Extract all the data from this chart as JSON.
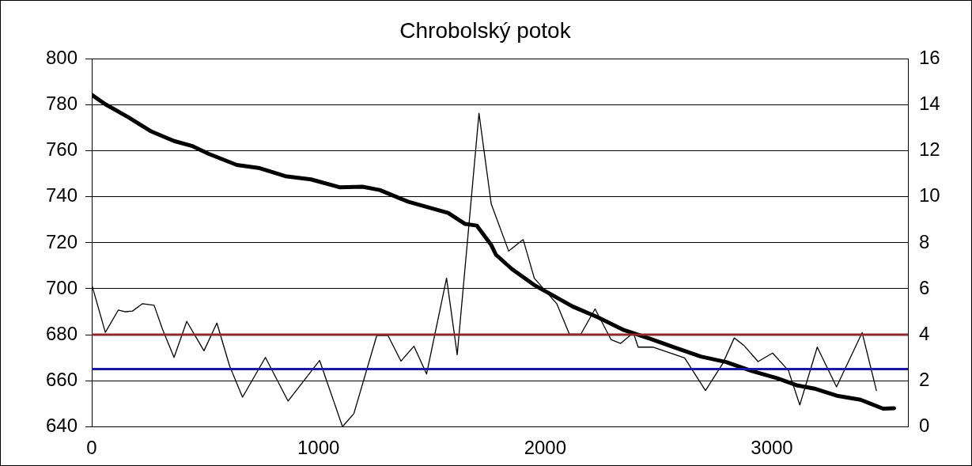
{
  "chart_data": {
    "type": "line",
    "title": "Chrobolský potok",
    "xlim": [
      0,
      3600
    ],
    "xticks": [
      0,
      1000,
      2000,
      3000
    ],
    "ylim": [
      640,
      800
    ],
    "yticks": [
      640,
      660,
      680,
      700,
      720,
      740,
      760,
      780,
      800
    ],
    "y2lim": [
      0,
      16
    ],
    "y2ticks": [
      0,
      2,
      4,
      6,
      8,
      10,
      12,
      14,
      16
    ],
    "grid": "y",
    "legend": false,
    "marker": "none",
    "line_style": "solid",
    "series": [
      {
        "color": "#000000",
        "x": [
          0,
          60,
          161,
          262,
          363,
          441,
          514,
          640,
          741,
          854,
          967,
          1093,
          1194,
          1270,
          1395,
          1547,
          1572,
          1647,
          1698,
          1761,
          1783,
          1853,
          1952,
          2023,
          2121,
          2234,
          2347,
          2460,
          2573,
          2686,
          2798,
          2911,
          3024,
          3109,
          3193,
          3292,
          3391,
          3490,
          3539
        ],
        "values": [
          784.4,
          780.3,
          774.7,
          768.5,
          764.3,
          762.2,
          758.8,
          753.9,
          752.5,
          749,
          747.6,
          744.2,
          744.4,
          743,
          737.9,
          733.7,
          733,
          728.2,
          727.5,
          719.2,
          714.8,
          708.6,
          701.6,
          697.7,
          692.3,
          687.5,
          682,
          678.3,
          674.4,
          670.5,
          668.1,
          664.2,
          661,
          658,
          656.4,
          653.3,
          651.7,
          647.8,
          648
        ]
      },
      {
        "color": "#000000",
        "axis": "y2",
        "x": [
          0,
          60,
          117,
          149,
          180,
          224,
          275,
          312,
          363,
          419,
          495,
          552,
          608,
          665,
          766,
          866,
          1005,
          1106,
          1156,
          1257,
          1307,
          1364,
          1421,
          1477,
          1565,
          1612,
          1708,
          1762,
          1839,
          1903,
          1952,
          2051,
          2107,
          2157,
          2220,
          2291,
          2333,
          2389,
          2410,
          2474,
          2615,
          2707,
          2784,
          2834,
          2876,
          2939,
          3003,
          3073,
          3123,
          3200,
          3285,
          3398,
          3461
        ],
        "values": [
          6.18,
          4.1,
          5.07,
          5.0,
          5.03,
          5.35,
          5.28,
          4.24,
          3.01,
          4.58,
          3.3,
          4.51,
          2.64,
          1.28,
          3.01,
          1.11,
          2.88,
          0,
          0.56,
          3.96,
          3.96,
          2.85,
          3.5,
          2.29,
          6.46,
          3.13,
          13.64,
          9.69,
          7.64,
          8.14,
          6.46,
          5.35,
          4.02,
          4.02,
          5.12,
          3.78,
          3.62,
          4.09,
          3.46,
          3.46,
          2.99,
          1.57,
          2.76,
          3.86,
          3.54,
          2.83,
          3.2,
          2.44,
          0.94,
          3.46,
          1.73,
          4.09,
          1.57
        ]
      }
    ],
    "ref_lines": [
      {
        "axis": "y2",
        "value": 4,
        "color": "#8b2b2b"
      },
      {
        "axis": "y2",
        "value": 2.5,
        "color": "#1a1aa0"
      }
    ]
  }
}
